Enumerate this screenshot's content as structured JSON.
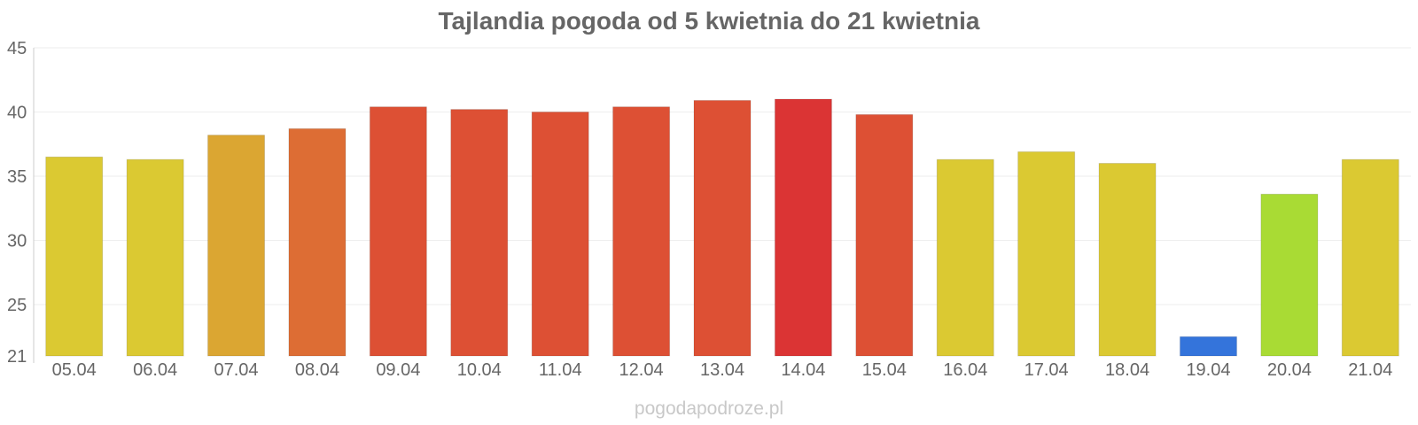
{
  "chart_data": {
    "type": "bar",
    "title": "Tajlandia pogoda od 5 kwietnia do 21 kwietnia",
    "categories": [
      "05.04",
      "06.04",
      "07.04",
      "08.04",
      "09.04",
      "10.04",
      "11.04",
      "12.04",
      "13.04",
      "14.04",
      "15.04",
      "16.04",
      "17.04",
      "18.04",
      "19.04",
      "20.04",
      "21.04"
    ],
    "values": [
      36.5,
      36.3,
      38.2,
      38.7,
      40.4,
      40.2,
      40.0,
      40.4,
      40.9,
      41.0,
      39.8,
      36.3,
      36.9,
      36.0,
      22.5,
      33.6,
      36.3
    ],
    "colors": [
      "#dbc932",
      "#dbc932",
      "#dba632",
      "#dd6d34",
      "#dd5034",
      "#dd5034",
      "#dd5034",
      "#dd5034",
      "#dd5034",
      "#db3434",
      "#dd5034",
      "#dbc932",
      "#dbc932",
      "#dbc932",
      "#3474db",
      "#a9db34",
      "#dbc932"
    ],
    "y_ticks": [
      21,
      25,
      30,
      35,
      40,
      45
    ],
    "ylim": [
      21,
      45
    ],
    "grid": true,
    "legend": "none"
  },
  "watermark": "pogodapodroze.pl"
}
